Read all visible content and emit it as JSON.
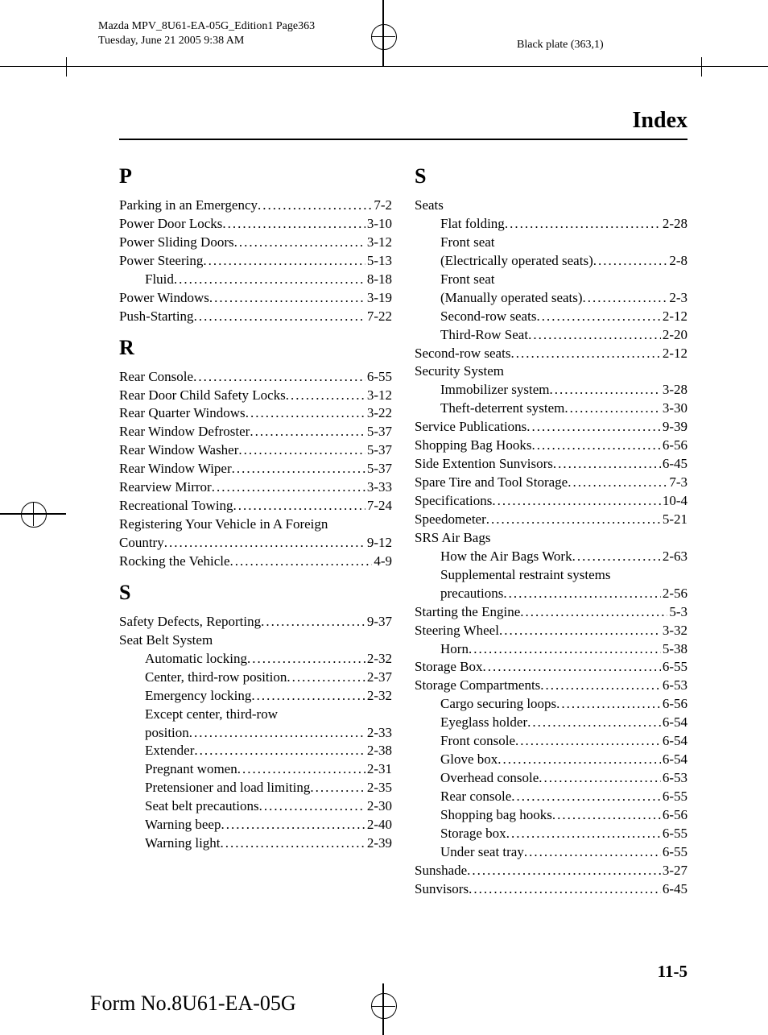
{
  "meta": {
    "doc_line1": "Mazda MPV_8U61-EA-05G_Edition1 Page363",
    "doc_line2": "Tuesday, June 21 2005 9:38 AM",
    "black_plate": "Black plate (363,1)",
    "title": "Index",
    "page_number": "11-5",
    "form_no": "Form No.8U61-EA-05G"
  },
  "left": [
    {
      "t": "letter",
      "v": "P"
    },
    {
      "t": "e",
      "l": "Parking in an Emergency",
      "p": "7-2"
    },
    {
      "t": "e",
      "l": "Power Door Locks",
      "p": "3-10"
    },
    {
      "t": "e",
      "l": "Power Sliding Doors",
      "p": "3-12"
    },
    {
      "t": "e",
      "l": "Power Steering",
      "p": "5-13"
    },
    {
      "t": "e",
      "i": 1,
      "l": "Fluid",
      "p": "8-18"
    },
    {
      "t": "e",
      "l": "Power Windows",
      "p": "3-19"
    },
    {
      "t": "e",
      "l": "Push-Starting",
      "p": "7-22"
    },
    {
      "t": "letter",
      "v": "R"
    },
    {
      "t": "e",
      "l": "Rear Console",
      "p": "6-55"
    },
    {
      "t": "e",
      "l": "Rear Door Child Safety Locks",
      "p": "3-12"
    },
    {
      "t": "e",
      "l": "Rear Quarter Windows",
      "p": "3-22"
    },
    {
      "t": "e",
      "l": "Rear Window Defroster",
      "p": "5-37"
    },
    {
      "t": "e",
      "l": "Rear Window Washer",
      "p": "5-37"
    },
    {
      "t": "e",
      "l": "Rear Window Wiper",
      "p": "5-37"
    },
    {
      "t": "e",
      "l": "Rearview Mirror",
      "p": "3-33"
    },
    {
      "t": "e",
      "l": "Recreational Towing",
      "p": "7-24"
    },
    {
      "t": "h",
      "l": "Registering Your Vehicle in A Foreign"
    },
    {
      "t": "e",
      "l": "Country",
      "p": "9-12"
    },
    {
      "t": "e",
      "l": "Rocking the Vehicle",
      "p": "4-9"
    },
    {
      "t": "letter",
      "v": "S"
    },
    {
      "t": "e",
      "l": "Safety Defects, Reporting",
      "p": "9-37"
    },
    {
      "t": "h",
      "l": "Seat Belt System"
    },
    {
      "t": "e",
      "i": 1,
      "l": "Automatic locking",
      "p": "2-32"
    },
    {
      "t": "e",
      "i": 1,
      "l": "Center, third-row position",
      "p": "2-37"
    },
    {
      "t": "e",
      "i": 1,
      "l": "Emergency locking",
      "p": "2-32"
    },
    {
      "t": "h",
      "i": 1,
      "l": "Except center, third-row"
    },
    {
      "t": "e",
      "i": 1,
      "l": "position",
      "p": "2-33"
    },
    {
      "t": "e",
      "i": 1,
      "l": "Extender",
      "p": "2-38"
    },
    {
      "t": "e",
      "i": 1,
      "l": "Pregnant women",
      "p": "2-31"
    },
    {
      "t": "e",
      "i": 1,
      "l": "Pretensioner and load limiting",
      "p": "2-35"
    },
    {
      "t": "e",
      "i": 1,
      "l": "Seat belt precautions",
      "p": "2-30"
    },
    {
      "t": "e",
      "i": 1,
      "l": "Warning beep",
      "p": "2-40"
    },
    {
      "t": "e",
      "i": 1,
      "l": "Warning light",
      "p": "2-39"
    }
  ],
  "right": [
    {
      "t": "letter",
      "v": "S"
    },
    {
      "t": "h",
      "l": "Seats"
    },
    {
      "t": "e",
      "i": 1,
      "l": "Flat folding",
      "p": "2-28"
    },
    {
      "t": "h",
      "i": 1,
      "l": "Front seat"
    },
    {
      "t": "e",
      "i": 1,
      "l": "(Electrically operated seats)",
      "p": "2-8"
    },
    {
      "t": "h",
      "i": 1,
      "l": "Front seat"
    },
    {
      "t": "e",
      "i": 1,
      "l": "(Manually operated seats)",
      "p": "2-3"
    },
    {
      "t": "e",
      "i": 1,
      "l": "Second-row seats",
      "p": "2-12"
    },
    {
      "t": "e",
      "i": 1,
      "l": "Third-Row Seat",
      "p": "2-20"
    },
    {
      "t": "e",
      "l": "Second-row seats",
      "p": "2-12"
    },
    {
      "t": "h",
      "l": "Security System"
    },
    {
      "t": "e",
      "i": 1,
      "l": "Immobilizer system",
      "p": "3-28"
    },
    {
      "t": "e",
      "i": 1,
      "l": "Theft-deterrent system",
      "p": "3-30"
    },
    {
      "t": "e",
      "l": "Service Publications",
      "p": "9-39"
    },
    {
      "t": "e",
      "l": "Shopping Bag Hooks",
      "p": "6-56"
    },
    {
      "t": "e",
      "l": "Side Extention Sunvisors",
      "p": "6-45"
    },
    {
      "t": "e",
      "l": "Spare Tire and Tool Storage",
      "p": "7-3"
    },
    {
      "t": "e",
      "l": "Specifications",
      "p": "10-4"
    },
    {
      "t": "e",
      "l": "Speedometer",
      "p": "5-21"
    },
    {
      "t": "h",
      "l": "SRS Air Bags"
    },
    {
      "t": "e",
      "i": 1,
      "l": "How the Air Bags Work",
      "p": "2-63"
    },
    {
      "t": "h",
      "i": 1,
      "l": "Supplemental restraint systems"
    },
    {
      "t": "e",
      "i": 1,
      "l": "precautions",
      "p": "2-56"
    },
    {
      "t": "e",
      "l": "Starting the Engine",
      "p": "5-3"
    },
    {
      "t": "e",
      "l": "Steering Wheel",
      "p": "3-32"
    },
    {
      "t": "e",
      "i": 1,
      "l": "Horn",
      "p": "5-38"
    },
    {
      "t": "e",
      "l": "Storage Box",
      "p": "6-55"
    },
    {
      "t": "e",
      "l": "Storage Compartments",
      "p": "6-53"
    },
    {
      "t": "e",
      "i": 1,
      "l": "Cargo securing loops",
      "p": "6-56"
    },
    {
      "t": "e",
      "i": 1,
      "l": "Eyeglass holder",
      "p": "6-54"
    },
    {
      "t": "e",
      "i": 1,
      "l": "Front console",
      "p": "6-54"
    },
    {
      "t": "e",
      "i": 1,
      "l": "Glove box",
      "p": "6-54"
    },
    {
      "t": "e",
      "i": 1,
      "l": "Overhead console",
      "p": "6-53"
    },
    {
      "t": "e",
      "i": 1,
      "l": "Rear console",
      "p": "6-55"
    },
    {
      "t": "e",
      "i": 1,
      "l": "Shopping bag hooks",
      "p": "6-56"
    },
    {
      "t": "e",
      "i": 1,
      "l": "Storage box",
      "p": "6-55"
    },
    {
      "t": "e",
      "i": 1,
      "l": "Under seat tray",
      "p": "6-55"
    },
    {
      "t": "e",
      "l": "Sunshade",
      "p": "3-27"
    },
    {
      "t": "e",
      "l": "Sunvisors",
      "p": "6-45"
    }
  ]
}
